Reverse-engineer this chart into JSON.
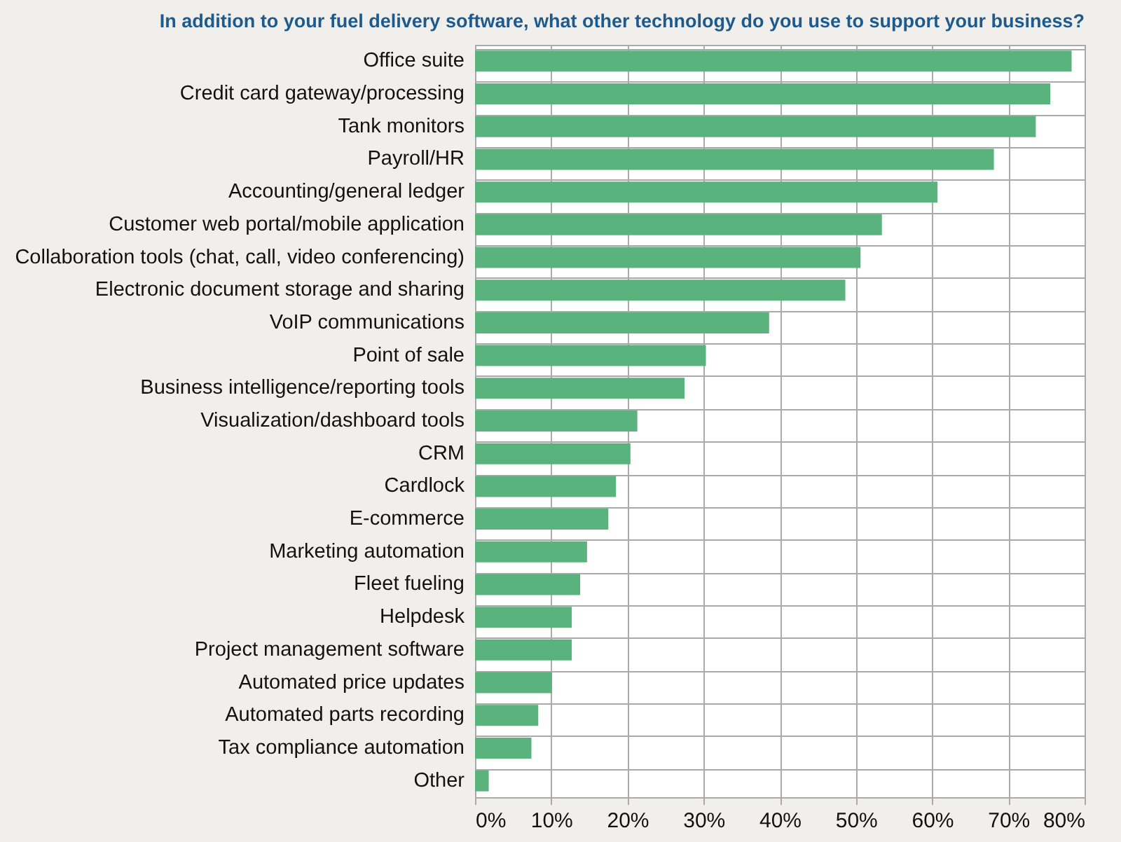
{
  "chart_data": {
    "type": "bar",
    "orientation": "horizontal",
    "title": "In addition to your fuel delivery software, what other technology do you use to support your business?",
    "categories": [
      "Office suite",
      "Credit card gateway/processing",
      "Tank monitors",
      "Payroll/HR",
      "Accounting/general ledger",
      "Customer web portal/mobile application",
      "Collaboration tools (chat, call, video conferencing)",
      "Electronic document storage and sharing",
      "VoIP communications",
      "Point of sale",
      "Business intelligence/reporting tools",
      "Visualization/dashboard tools",
      "CRM",
      "Cardlock",
      "E-commerce",
      "Marketing automation",
      "Fleet fueling",
      "Helpdesk",
      "Project management software",
      "Automated price updates",
      "Automated parts recording",
      "Tax compliance automation",
      "Other"
    ],
    "values": [
      78.3,
      75.5,
      73.6,
      68.1,
      60.7,
      53.4,
      50.6,
      48.6,
      38.6,
      30.3,
      27.5,
      21.3,
      20.4,
      18.5,
      17.5,
      14.7,
      13.8,
      12.7,
      12.7,
      10.1,
      8.3,
      7.4,
      1.8
    ],
    "color": "#5ab27c",
    "xlim": [
      0,
      80
    ],
    "xticks": [
      {
        "value": 0,
        "label": "0%"
      },
      {
        "value": 10,
        "label": "10%"
      },
      {
        "value": 20,
        "label": "20%"
      },
      {
        "value": 30,
        "label": "30%"
      },
      {
        "value": 40,
        "label": "40%"
      },
      {
        "value": 50,
        "label": "50%"
      },
      {
        "value": 60,
        "label": "60%"
      },
      {
        "value": 70,
        "label": "70%"
      },
      {
        "value": 80,
        "label": "80%"
      }
    ],
    "grid": true
  }
}
